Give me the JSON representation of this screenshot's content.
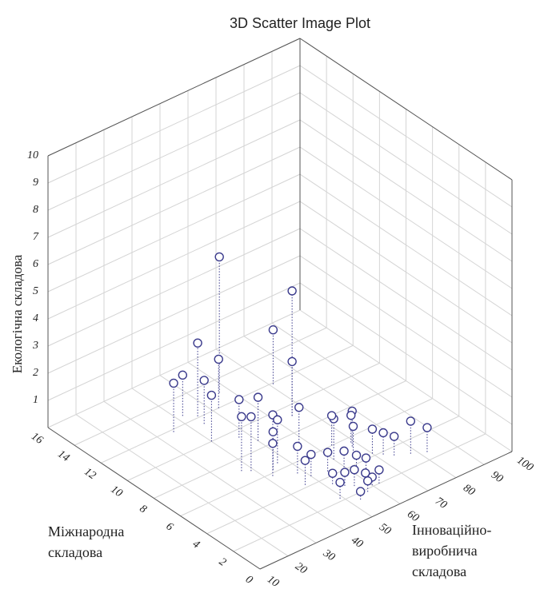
{
  "chart_data": {
    "type": "scatter3d",
    "title": "3D Scatter Image Plot",
    "x_label": "Інноваційно-виробнича складова",
    "y_label": "Міжнародна складова",
    "z_label": "Екологічна складова",
    "xlim": [
      10,
      100
    ],
    "xticks": [
      10,
      20,
      30,
      40,
      50,
      60,
      70,
      80,
      90,
      100
    ],
    "ylim": [
      0,
      16
    ],
    "yticks": [
      0,
      2,
      4,
      6,
      8,
      10,
      12,
      14,
      16
    ],
    "zlim": [
      0,
      10
    ],
    "zticks": [
      1,
      2,
      3,
      4,
      5,
      6,
      7,
      8,
      9,
      10
    ],
    "grid": true,
    "color": "#3a3a8c",
    "x": [
      57,
      65,
      71,
      65,
      45,
      52,
      42,
      35,
      44,
      51,
      60,
      68,
      37,
      39,
      44,
      47,
      42,
      48,
      50,
      46,
      55,
      58,
      61,
      63,
      52,
      54,
      56,
      59,
      60,
      62,
      57,
      53,
      49,
      66,
      70,
      72,
      74,
      78,
      82,
      50,
      47,
      58,
      64,
      69,
      40
    ],
    "y": [
      13,
      9.2,
      11.9,
      9.2,
      12.1,
      12,
      12.6,
      11.8,
      11.4,
      7.7,
      5,
      5.3,
      7.1,
      6.8,
      6.2,
      6.5,
      5.8,
      5.2,
      4.6,
      4.2,
      4.4,
      3.8,
      3.5,
      3.2,
      3.4,
      2.9,
      2.6,
      2.4,
      2.1,
      2.0,
      1.8,
      1.5,
      2.2,
      4.8,
      4.2,
      3.8,
      3.4,
      3.0,
      2.6,
      8.6,
      9.4,
      7.2,
      6.0,
      5.6,
      10.0
    ],
    "z": [
      5,
      4.6,
      2,
      2,
      2.7,
      1.8,
      1.5,
      1.8,
      1.6,
      1.2,
      1.5,
      1.3,
      2,
      2,
      1.4,
      1.6,
      1.2,
      1.0,
      0.8,
      0.9,
      0.7,
      0.8,
      0.6,
      0.5,
      0.4,
      0.5,
      0.6,
      0.4,
      0.3,
      0.5,
      0.4,
      0.3,
      0.6,
      1.0,
      0.9,
      0.8,
      0.7,
      1.2,
      0.9,
      1.6,
      1.4,
      1.3,
      1.1,
      1.0,
      1.7
    ]
  }
}
